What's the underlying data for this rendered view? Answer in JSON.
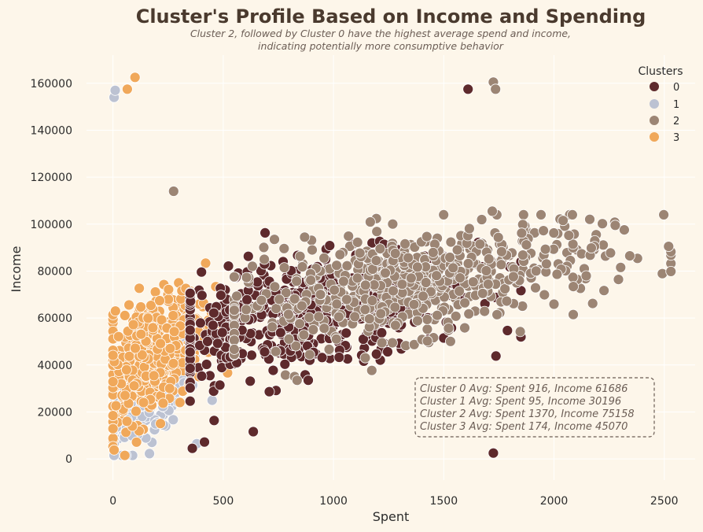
{
  "chart_data": {
    "type": "scatter",
    "title": "Cluster's Profile Based on Income and Spending",
    "subtitle_lines": [
      "Cluster 2, followed by Cluster 0 have the highest average spend and income,",
      "indicating potentially more consumptive behavior"
    ],
    "xlabel": "Spent",
    "ylabel": "Income",
    "xlim": [
      -120,
      2640
    ],
    "ylim": [
      -9000,
      172000
    ],
    "xticks": [
      0,
      500,
      1000,
      1500,
      2000,
      2500
    ],
    "yticks": [
      0,
      20000,
      40000,
      60000,
      80000,
      100000,
      120000,
      140000,
      160000
    ],
    "grid": true,
    "legend": {
      "title": "Clusters",
      "placement": "top-right"
    },
    "series": [
      {
        "name": "0",
        "color": "#5e2a2c",
        "cluster_center": [
          860,
          61000
        ],
        "spread": [
          390,
          11500
        ],
        "count": 560,
        "x_range": [
          350,
          1850
        ],
        "outliers": [
          [
            1610,
            157500
          ],
          [
            1725,
            2500
          ],
          [
            360,
            4500
          ],
          [
            415,
            7200
          ]
        ]
      },
      {
        "name": "1",
        "color": "#bcc2d2",
        "cluster_center": [
          110,
          28000
        ],
        "spread": [
          110,
          11000
        ],
        "count": 400,
        "x_range": [
          5,
          480
        ],
        "outliers": [
          [
            5,
            154000
          ],
          [
            10,
            157000
          ],
          [
            380,
            6500
          ],
          [
            450,
            25000
          ]
        ]
      },
      {
        "name": "2",
        "color": "#9c8574",
        "cluster_center": [
          1370,
          75000
        ],
        "spread": [
          430,
          11000
        ],
        "count": 580,
        "x_range": [
          550,
          2530
        ],
        "outliers": [
          [
            1725,
            160500
          ],
          [
            1735,
            157500
          ],
          [
            275,
            114000
          ],
          [
            835,
            33500
          ],
          [
            1720,
            105500
          ],
          [
            2520,
            90500
          ]
        ]
      },
      {
        "name": "3",
        "color": "#f0a85a",
        "cluster_center": [
          180,
          45000
        ],
        "spread": [
          120,
          12500
        ],
        "count": 470,
        "x_range": [
          0,
          600
        ],
        "outliers": [
          [
            100,
            162500
          ],
          [
            65,
            157500
          ],
          [
            5,
            3800
          ]
        ]
      }
    ],
    "annotations": [
      "Cluster 0 Avg: Spent 916, Income 61686",
      "Cluster 1 Avg: Spent 95, Income 30196",
      "Cluster 2 Avg: Spent 1370, Income 75158",
      "Cluster 3 Avg: Spent 174, Income 45070"
    ]
  }
}
